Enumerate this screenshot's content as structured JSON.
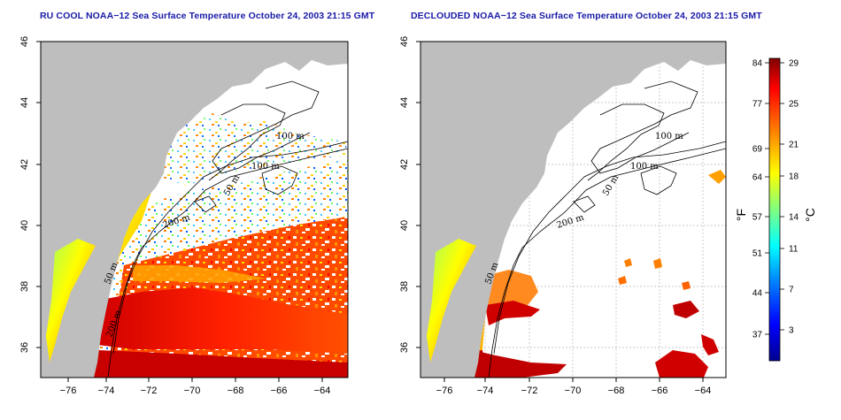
{
  "titles": {
    "left": "RU COOL NOAA−12 Sea Surface Temperature October 24, 2003 21:15 GMT",
    "right": "DECLOUDED NOAA−12 Sea Surface Temperature October 24, 2003 21:15 GMT"
  },
  "axes": {
    "x_ticks": [
      "−76",
      "−74",
      "−72",
      "−70",
      "−68",
      "−66",
      "−64"
    ],
    "y_ticks": [
      "46",
      "44",
      "42",
      "40",
      "38",
      "36"
    ]
  },
  "contour_labels": {
    "left": [
      "100 m",
      "100 m",
      "50 m",
      "200 m",
      "50 m",
      "200 m"
    ],
    "right": [
      "100 m",
      "100 m",
      "50 m",
      "200 m",
      "50 m"
    ]
  },
  "colorbar": {
    "fahrenheit_label": "°F",
    "celsius_label": "°C",
    "fahrenheit_ticks": [
      "84",
      "77",
      "69",
      "64",
      "57",
      "51",
      "44",
      "37"
    ],
    "celsius_ticks": [
      "29",
      "25",
      "21",
      "18",
      "14",
      "11",
      "7",
      "3"
    ],
    "gradient_colors": [
      "#00008f",
      "#0000ff",
      "#0080ff",
      "#00ffff",
      "#80ff80",
      "#ffff00",
      "#ff8000",
      "#ff0000",
      "#800000"
    ]
  },
  "colors": {
    "land": "#bebebe",
    "title": "#1a1aa8"
  }
}
